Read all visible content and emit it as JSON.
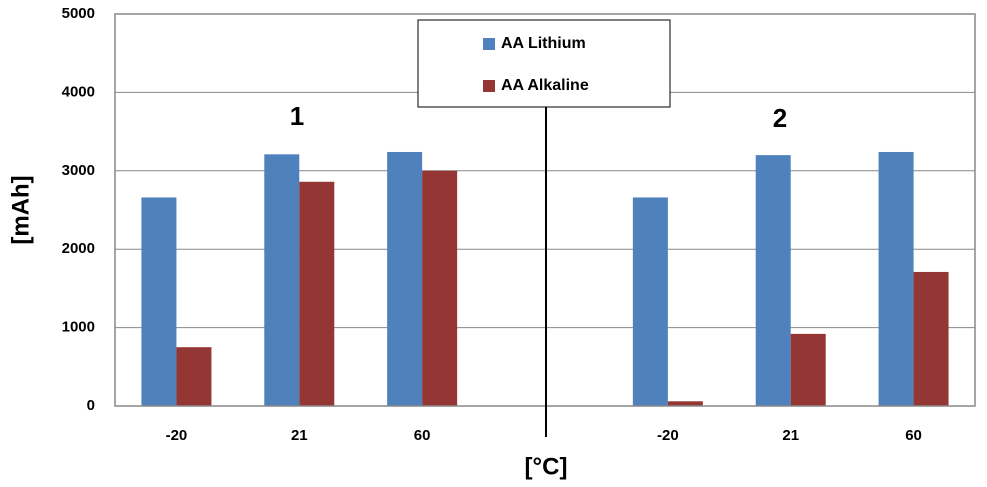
{
  "chart_data": {
    "type": "bar",
    "x_label": "[°C]",
    "y_label": "[mAh]",
    "annotations": [
      "1",
      "2"
    ],
    "categories": [
      "-20",
      "21",
      "60",
      null,
      "-20",
      "21",
      "60"
    ],
    "series": [
      {
        "name": "AA Lithium",
        "color": "#4f81bd",
        "values": [
          2660,
          3210,
          3240,
          null,
          2660,
          3200,
          3240
        ]
      },
      {
        "name": "AA Alkaline",
        "color": "#943634",
        "values": [
          750,
          2860,
          3000,
          null,
          60,
          920,
          1710
        ]
      }
    ],
    "ylim": [
      0,
      5000
    ],
    "yticks": [
      0,
      1000,
      2000,
      3000,
      4000,
      5000
    ],
    "grid": true
  }
}
